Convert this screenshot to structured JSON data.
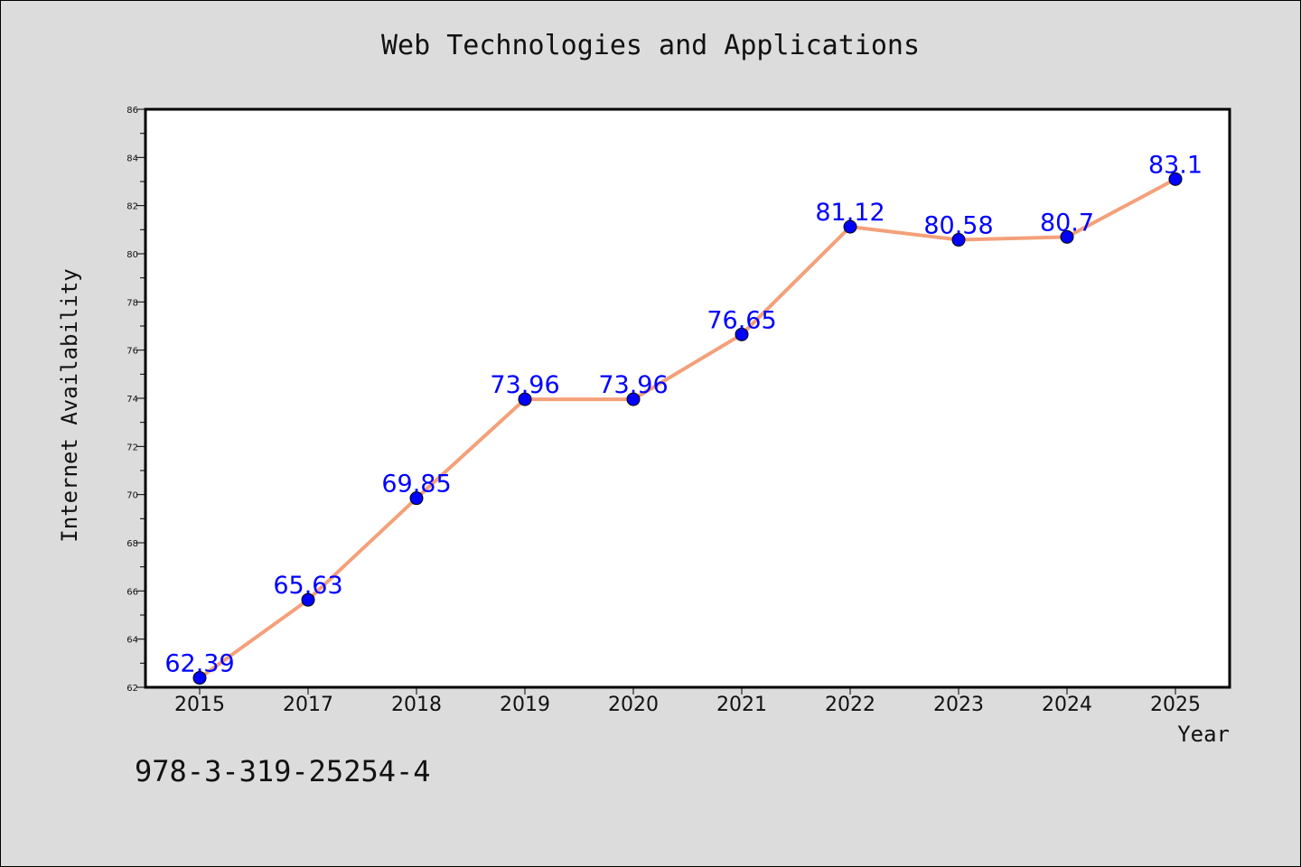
{
  "chart_data": {
    "type": "line",
    "title": "Web Technologies and Applications",
    "xlabel": "Year",
    "ylabel": "Internet Availability",
    "categories": [
      "2015",
      "2017",
      "2018",
      "2019",
      "2020",
      "2021",
      "2022",
      "2023",
      "2024",
      "2025"
    ],
    "series": [
      {
        "values": [
          62.39,
          65.63,
          69.85,
          73.96,
          73.96,
          76.65,
          81.12,
          80.58,
          80.7,
          83.1
        ],
        "labels": [
          "62.39",
          "65.63",
          "69.85",
          "73.96",
          "73.96",
          "76.65",
          "81.12",
          "80.58",
          "80.7",
          "83.1"
        ]
      }
    ],
    "ylim": [
      62,
      86
    ],
    "yticks": [
      "62",
      "64",
      "66",
      "68",
      "70",
      "72",
      "74",
      "76",
      "78",
      "80",
      "82",
      "84",
      "86"
    ],
    "grid": false,
    "line_color": "#f4a07a",
    "marker_color": "#0000ff",
    "label_color": "#0000ff",
    "background_color": "#dcdcdc",
    "plot_background": "#ffffff"
  },
  "footer": {
    "isbn": "978-3-319-25254-4"
  }
}
